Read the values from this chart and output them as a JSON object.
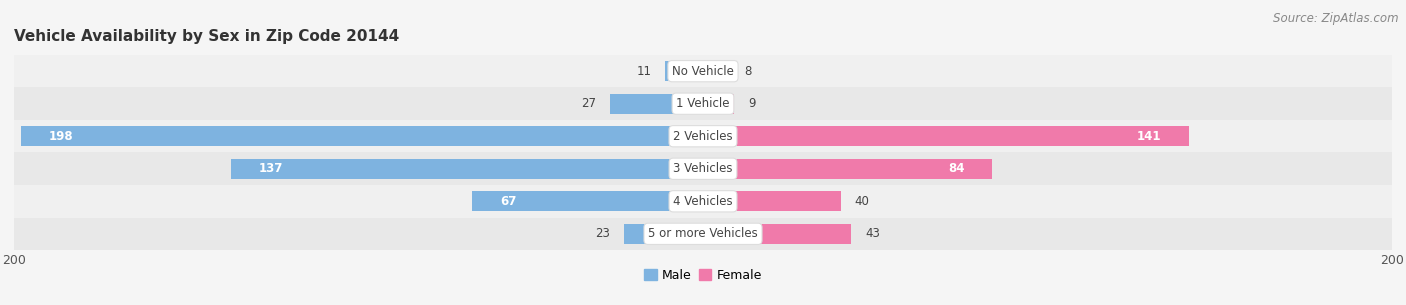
{
  "title": "Vehicle Availability by Sex in Zip Code 20144",
  "source": "Source: ZipAtlas.com",
  "categories": [
    "No Vehicle",
    "1 Vehicle",
    "2 Vehicles",
    "3 Vehicles",
    "4 Vehicles",
    "5 or more Vehicles"
  ],
  "male_values": [
    11,
    27,
    198,
    137,
    67,
    23
  ],
  "female_values": [
    8,
    9,
    141,
    84,
    40,
    43
  ],
  "male_color": "#7eb3e0",
  "female_color": "#f07aaa",
  "axis_max": 200,
  "bar_height": 0.62,
  "background_color": "#f5f5f5",
  "row_colors": [
    "#f0f0f0",
    "#e8e8e8",
    "#f0f0f0",
    "#e8e8e8",
    "#f0f0f0",
    "#e8e8e8"
  ],
  "label_fontsize": 8.5,
  "title_fontsize": 11,
  "source_fontsize": 8.5
}
